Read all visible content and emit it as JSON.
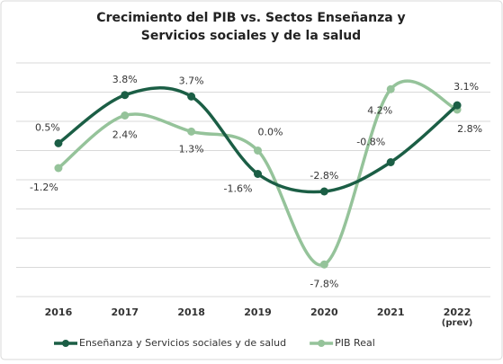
{
  "chart_data": {
    "type": "line",
    "title": [
      "Crecimiento del PIB vs. Sectos Enseñanza  y",
      "Servicios sociales y de la salud"
    ],
    "categories": [
      "2016",
      "2017",
      "2018",
      "2019",
      "2020",
      "2021",
      "2022 (prev)"
    ],
    "series": [
      {
        "name": "Enseñanza  y Servicios sociales y de salud",
        "color": "#1b5e45",
        "values": [
          0.5,
          3.8,
          3.7,
          -1.6,
          -2.8,
          -0.8,
          3.1
        ],
        "value_labels": [
          "0.5%",
          "3.8%",
          "3.7%",
          "-1.6%",
          "-2.8%",
          "-0.8%",
          "3.1%"
        ]
      },
      {
        "name": "PIB Real",
        "color": "#95c39a",
        "values": [
          -1.2,
          2.4,
          1.3,
          0.0,
          -7.8,
          4.2,
          2.8
        ],
        "value_labels": [
          "-1.2%",
          "2.4%",
          "1.3%",
          "0.0%",
          "-7.8%",
          "4.2%",
          "2.8%"
        ]
      }
    ],
    "ylim": [
      -10,
      6
    ],
    "yticks": [
      -10,
      -8,
      -6,
      -4,
      -2,
      0,
      2,
      4,
      6
    ],
    "grid": true,
    "legend": "bottom"
  }
}
